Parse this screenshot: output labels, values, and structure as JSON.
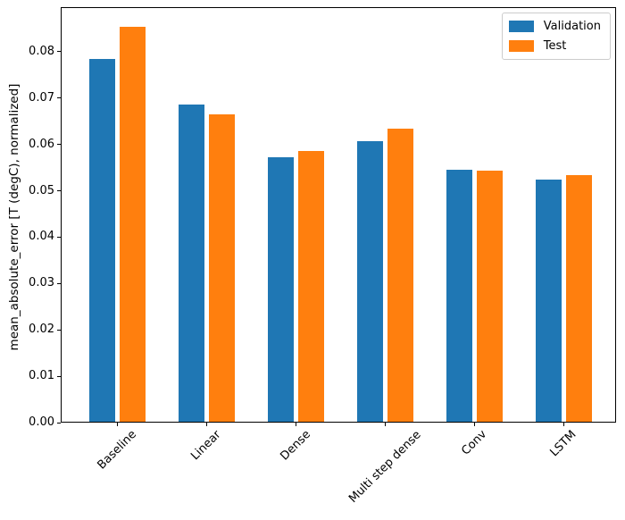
{
  "chart_data": {
    "type": "bar",
    "title": "",
    "xlabel": "",
    "ylabel": "mean_absolute_error [T (degC), normalized]",
    "categories": [
      "Baseline",
      "Linear",
      "Dense",
      "Multi step dense",
      "Conv",
      "LSTM"
    ],
    "series": [
      {
        "name": "Validation",
        "color": "#1f77b4",
        "values": [
          0.0785,
          0.0687,
          0.0573,
          0.0607,
          0.0546,
          0.0524
        ]
      },
      {
        "name": "Test",
        "color": "#ff7f0e",
        "values": [
          0.0853,
          0.0664,
          0.0585,
          0.0635,
          0.0544,
          0.0534
        ]
      }
    ],
    "ylim": [
      0,
      0.0896
    ],
    "yticks": [
      {
        "value": 0.0,
        "label": "0.00"
      },
      {
        "value": 0.01,
        "label": "0.01"
      },
      {
        "value": 0.02,
        "label": "0.02"
      },
      {
        "value": 0.03,
        "label": "0.03"
      },
      {
        "value": 0.04,
        "label": "0.04"
      },
      {
        "value": 0.05,
        "label": "0.05"
      },
      {
        "value": 0.06,
        "label": "0.06"
      },
      {
        "value": 0.07,
        "label": "0.07"
      },
      {
        "value": 0.08,
        "label": "0.08"
      }
    ],
    "xtick_rotation": 45,
    "grid": false,
    "legend": {
      "position": "upper right",
      "entries": [
        "Validation",
        "Test"
      ]
    },
    "axis_color": "#000000",
    "background_color": "#ffffff"
  }
}
